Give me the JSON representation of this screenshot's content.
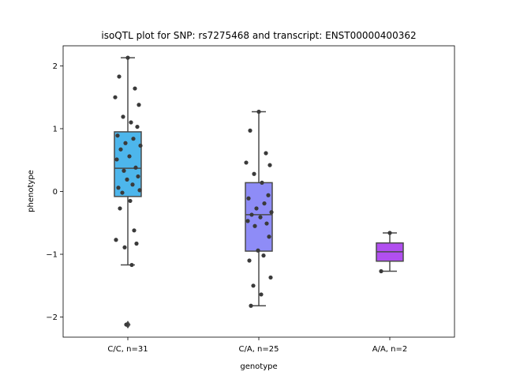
{
  "chart_data": {
    "type": "box",
    "title": "isoQTL plot for SNP: rs7275468 and transcript: ENST00000400362",
    "xlabel": "genotype",
    "ylabel": "phenotype",
    "ylim": [
      -2.32,
      2.32
    ],
    "yticks": [
      -2,
      -1,
      0,
      1,
      2
    ],
    "ytick_labels": [
      "−2",
      "−1",
      "0",
      "1",
      "2"
    ],
    "grid": false,
    "categories": [
      "C/C, n=31",
      "C/A, n=25",
      "A/A, n=2"
    ],
    "boxes": [
      {
        "category": "C/C, n=31",
        "color": "#4db6ec",
        "q1": -0.08,
        "median": 0.37,
        "q3": 0.95,
        "whisker_low": -1.17,
        "whisker_high": 2.13,
        "outliers": [
          -2.12
        ],
        "points": [
          2.13,
          1.83,
          1.64,
          1.5,
          1.38,
          1.19,
          1.1,
          1.03,
          0.89,
          0.84,
          0.77,
          0.73,
          0.67,
          0.56,
          0.51,
          0.38,
          0.33,
          0.24,
          0.19,
          0.11,
          0.06,
          0.02,
          -0.02,
          -0.15,
          -0.27,
          -0.62,
          -0.77,
          -0.83,
          -0.89,
          -1.17,
          -2.12
        ]
      },
      {
        "category": "C/A, n=25",
        "color": "#8e8cf7",
        "q1": -0.95,
        "median": -0.37,
        "q3": 0.14,
        "whisker_low": -1.82,
        "whisker_high": 1.27,
        "outliers": [],
        "points": [
          1.27,
          0.97,
          0.61,
          0.46,
          0.42,
          0.28,
          0.14,
          -0.06,
          -0.11,
          -0.19,
          -0.27,
          -0.33,
          -0.37,
          -0.41,
          -0.47,
          -0.51,
          -0.55,
          -0.72,
          -0.94,
          -1.02,
          -1.1,
          -1.37,
          -1.5,
          -1.64,
          -1.82
        ]
      },
      {
        "category": "A/A, n=2",
        "color": "#b14ff0",
        "q1": -1.11,
        "median": -0.96,
        "q3": -0.82,
        "whisker_low": -1.27,
        "whisker_high": -0.66,
        "outliers": [],
        "points": [
          -0.66,
          -1.27
        ]
      }
    ]
  }
}
